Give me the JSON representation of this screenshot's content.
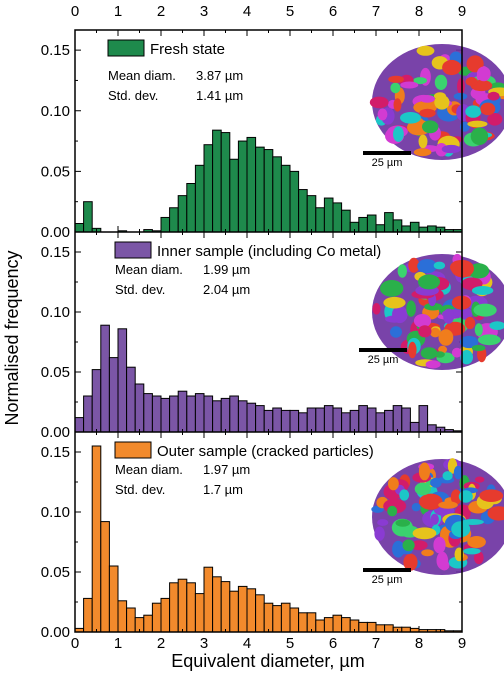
{
  "chart_data": {
    "type": "bar",
    "xlabel": "Equivalent diameter, µm",
    "ylabel": "Normalised frequency",
    "xlim": [
      0,
      9
    ],
    "x_ticks": [
      0,
      1,
      2,
      3,
      4,
      5,
      6,
      7,
      8,
      9
    ],
    "ylim": [
      0,
      0.16
    ],
    "y_ticks": [
      0.0,
      0.05,
      0.1,
      0.15
    ],
    "y_tick_labels": [
      "0.00",
      "0.05",
      "0.10",
      "0.15"
    ],
    "bin_width": 0.2,
    "bin_start": 0,
    "panels": [
      {
        "name": "Fresh state",
        "color": "#1e8a4c",
        "stats": [
          {
            "label": "Mean diam.",
            "value": "3.87 µm"
          },
          {
            "label": "Std. dev.",
            "value": "1.41 µm"
          }
        ],
        "scale_bar": "25 µm",
        "values": [
          0.007,
          0.025,
          0.003,
          0,
          0,
          0.001,
          0,
          0,
          0.002,
          0.001,
          0.012,
          0.02,
          0.03,
          0.04,
          0.055,
          0.072,
          0.084,
          0.082,
          0.06,
          0.075,
          0.078,
          0.07,
          0.068,
          0.062,
          0.055,
          0.05,
          0.035,
          0.03,
          0.02,
          0.028,
          0.024,
          0.018,
          0.008,
          0.012,
          0.014,
          0.006,
          0.016,
          0.01,
          0.005,
          0.008,
          0.004,
          0.005,
          0.004,
          0.002,
          0.002
        ]
      },
      {
        "name": "Inner sample (including Co metal)",
        "color": "#7b56a6",
        "stats": [
          {
            "label": "Mean diam.",
            "value": "1.99 µm"
          },
          {
            "label": "Std. dev.",
            "value": "2.04 µm"
          }
        ],
        "scale_bar": "25 µm",
        "values": [
          0.012,
          0.03,
          0.052,
          0.089,
          0.062,
          0.086,
          0.054,
          0.04,
          0.032,
          0.03,
          0.028,
          0.03,
          0.034,
          0.03,
          0.032,
          0.03,
          0.026,
          0.028,
          0.03,
          0.026,
          0.024,
          0.022,
          0.018,
          0.02,
          0.018,
          0.018,
          0.016,
          0.02,
          0.02,
          0.022,
          0.02,
          0.016,
          0.018,
          0.022,
          0.02,
          0.016,
          0.018,
          0.022,
          0.02,
          0.008,
          0.022,
          0.006,
          0.004,
          0.002,
          0.001
        ]
      },
      {
        "name": "Outer sample (cracked particles)",
        "color": "#f28a2c",
        "stats": [
          {
            "label": "Mean diam.",
            "value": "1.97 µm"
          },
          {
            "label": "Std. dev.",
            "value": "1.7 µm"
          }
        ],
        "scale_bar": "25 µm",
        "values": [
          0.003,
          0.028,
          0.155,
          0.092,
          0.055,
          0.026,
          0.02,
          0.012,
          0.014,
          0.024,
          0.028,
          0.041,
          0.044,
          0.041,
          0.032,
          0.054,
          0.046,
          0.042,
          0.034,
          0.038,
          0.036,
          0.031,
          0.024,
          0.022,
          0.024,
          0.02,
          0.016,
          0.016,
          0.01,
          0.012,
          0.014,
          0.012,
          0.01,
          0.008,
          0.008,
          0.006,
          0.006,
          0.004,
          0.004,
          0.003,
          0.002,
          0.002,
          0.002,
          0.001,
          0.001
        ]
      }
    ]
  }
}
